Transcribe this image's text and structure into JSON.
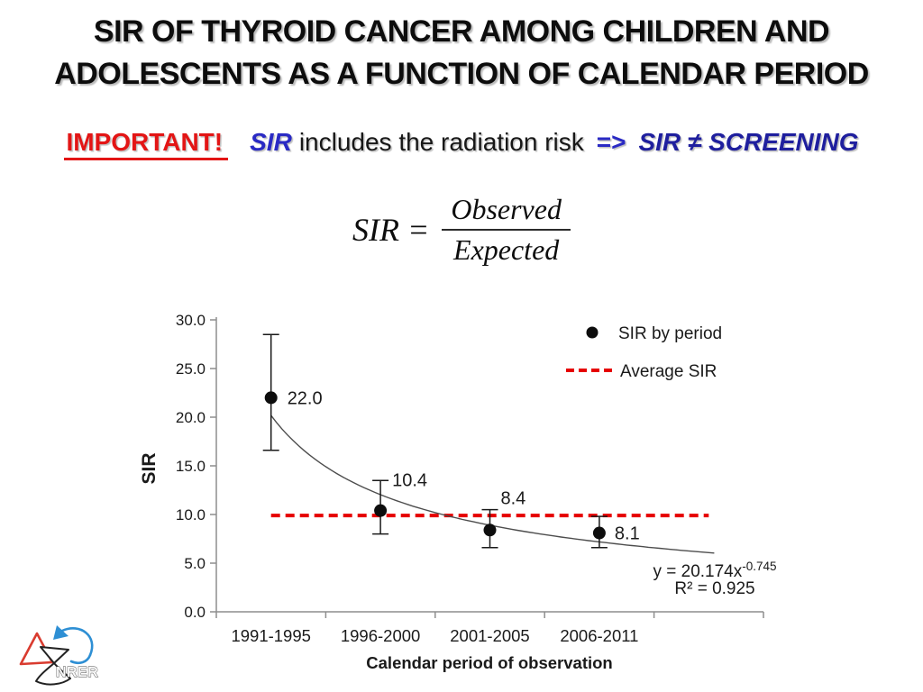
{
  "title": {
    "line1": "SIR OF THYROID CANCER AMONG CHILDREN AND",
    "line2": "ADOLESCENTS AS A FUNCTION OF CALENDAR PERIOD"
  },
  "note": {
    "label": "IMPORTANT!",
    "term": "SIR",
    "body": "includes the radiation risk",
    "arrow": "=>",
    "conclusion": "SIR ≠ SCREENING"
  },
  "formula": {
    "lhs": "SIR =",
    "numerator": "Observed",
    "denominator": "Expected"
  },
  "logo": {
    "text": "NRER"
  },
  "colors": {
    "accent_red": "#e31515",
    "accent_blue": "#2a2ac4",
    "average_line_red": "#e60000",
    "trendline_gray": "#4d4d4d",
    "axis_gray": "#8e8e8e",
    "equation_gray": "#404040"
  },
  "chart_data": {
    "type": "scatter",
    "title": "",
    "xlabel": "Calendar period of observation",
    "ylabel": "SIR",
    "ylim": [
      0,
      30
    ],
    "ytick_step": 5,
    "ytick_labels": [
      "0.0",
      "5.0",
      "10.0",
      "15.0",
      "20.0",
      "25.0",
      "30.0"
    ],
    "categories": [
      "1991-1995",
      "1996-2000",
      "2001-2005",
      "2006-2011"
    ],
    "series": [
      {
        "name": "SIR by period",
        "values": [
          22.0,
          10.4,
          8.4,
          8.1
        ],
        "point_labels": [
          "22.0",
          "10.4",
          "8.4",
          "8.1"
        ],
        "error_high": [
          28.5,
          13.5,
          10.5,
          9.8
        ],
        "error_low": [
          16.6,
          8.0,
          6.6,
          6.6
        ],
        "marker": "filled-circle",
        "color": "#0d0d0d"
      }
    ],
    "average_line": {
      "name": "Average SIR",
      "value": 9.9,
      "color": "#e60000",
      "style": "dashed"
    },
    "trendline": {
      "type": "power",
      "a": 20.174,
      "b": -0.745,
      "equation_text": "y = 20.174x",
      "equation_exponent": "-0.745",
      "r2_text": "R² = 0.925"
    },
    "legend": [
      "SIR by period",
      "Average SIR"
    ],
    "legend_position": "top-right-inside",
    "grid": false
  }
}
